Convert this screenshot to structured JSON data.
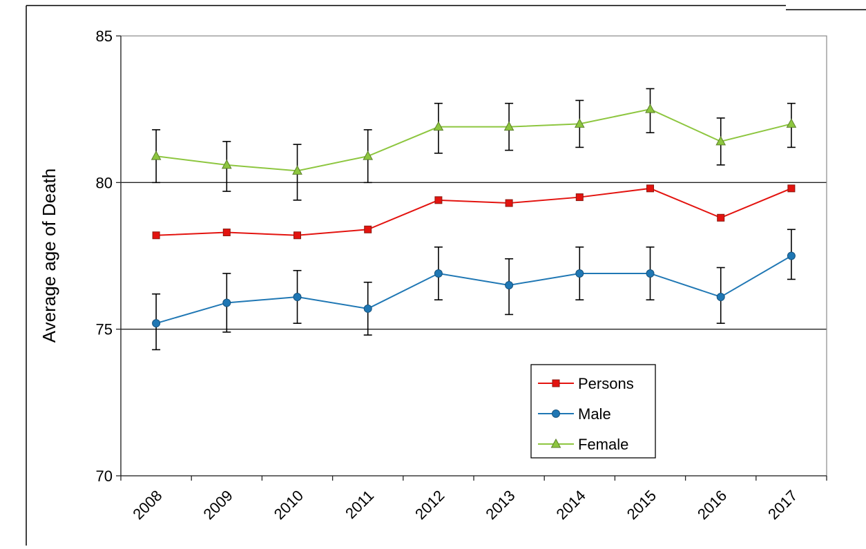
{
  "chart_data": {
    "type": "line",
    "title": "",
    "xlabel": "",
    "ylabel": "Average age of Death",
    "ylim": [
      70,
      85
    ],
    "yticks": [
      70,
      75,
      80,
      85
    ],
    "grid": "horizontal",
    "legend_position": "bottom-right",
    "categories": [
      "2008",
      "2009",
      "2010",
      "2011",
      "2012",
      "2013",
      "2014",
      "2015",
      "2016",
      "2017"
    ],
    "series": [
      {
        "name": "Persons",
        "color": "#e3130f",
        "marker": "square",
        "values": [
          78.2,
          78.3,
          78.2,
          78.4,
          79.4,
          79.3,
          79.5,
          79.8,
          78.8,
          79.8
        ]
      },
      {
        "name": "Male",
        "color": "#1f77b4",
        "marker": "circle",
        "values": [
          75.2,
          75.9,
          76.1,
          75.7,
          76.9,
          76.5,
          76.9,
          76.9,
          76.1,
          77.5
        ],
        "error_low": [
          74.3,
          74.9,
          75.2,
          74.8,
          76.0,
          75.5,
          76.0,
          76.0,
          75.2,
          76.7
        ],
        "error_high": [
          76.2,
          76.9,
          77.0,
          76.6,
          77.8,
          77.4,
          77.8,
          77.8,
          77.1,
          78.4
        ]
      },
      {
        "name": "Female",
        "color": "#8dc63f",
        "marker": "triangle",
        "values": [
          80.9,
          80.6,
          80.4,
          80.9,
          81.9,
          81.9,
          82.0,
          82.5,
          81.4,
          82.0
        ],
        "error_low": [
          80.0,
          79.7,
          79.4,
          80.0,
          81.0,
          81.1,
          81.2,
          81.7,
          80.6,
          81.2
        ],
        "error_high": [
          81.8,
          81.4,
          81.3,
          81.8,
          82.7,
          82.7,
          82.8,
          83.2,
          82.2,
          82.7
        ]
      }
    ]
  }
}
